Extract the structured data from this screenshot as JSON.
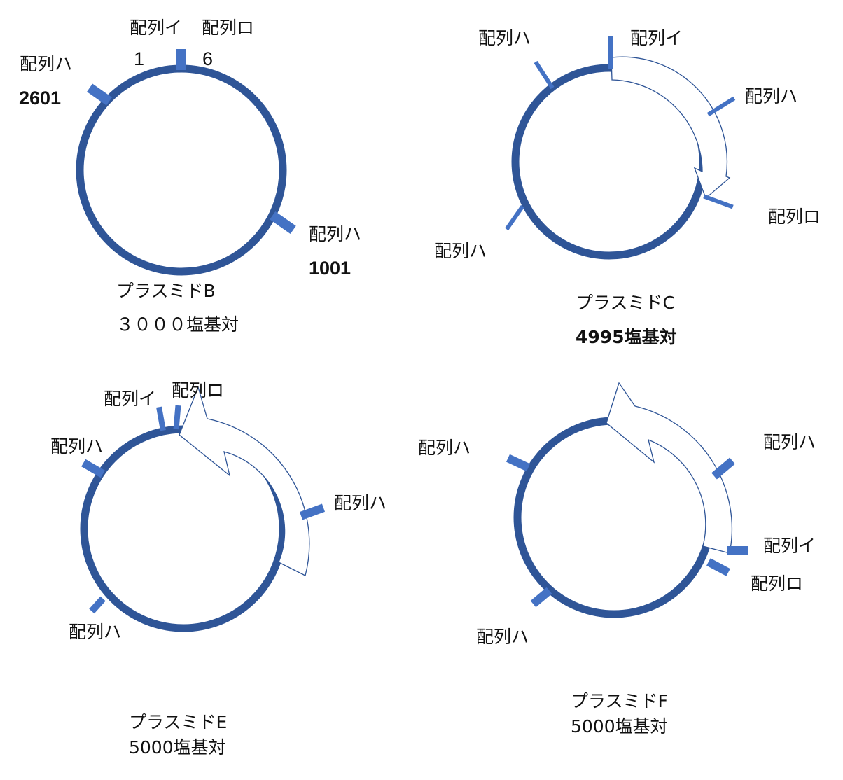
{
  "colors": {
    "ring": "#2F5597",
    "site_marker": "#4472C4",
    "arrow_outline": "#2F5597",
    "text": "#111111"
  },
  "plasmids": {
    "B": {
      "name": "プラスミドB",
      "size": "３０００塩基対",
      "labels": {
        "i": "配列イ",
        "ro": "配列ロ",
        "ha_upper_left": "配列ハ",
        "ha_lower_right": "配列ハ"
      },
      "positions": {
        "i": "1",
        "ro": "6",
        "ha_upper_left": "2601",
        "ha_lower_right": "1001"
      }
    },
    "C": {
      "name": "プラスミドC",
      "size": "4995塩基対",
      "labels": {
        "i": "配列イ",
        "ro": "配列ロ",
        "ha_upper_left": "配列ハ",
        "ha_right": "配列ハ",
        "ha_lower_left": "配列ハ"
      }
    },
    "E": {
      "name": "プラスミドE",
      "size": "5000塩基対",
      "labels": {
        "i": "配列イ",
        "ro": "配列ロ",
        "ha_left": "配列ハ",
        "ha_right": "配列ハ",
        "ha_lower_left": "配列ハ"
      }
    },
    "F": {
      "name": "プラスミドF",
      "size": "5000塩基対",
      "labels": {
        "ha_left": "配列ハ",
        "ha_upper_right": "配列ハ",
        "i": "配列イ",
        "ro": "配列ロ",
        "ha_lower_left": "配列ハ"
      }
    }
  }
}
